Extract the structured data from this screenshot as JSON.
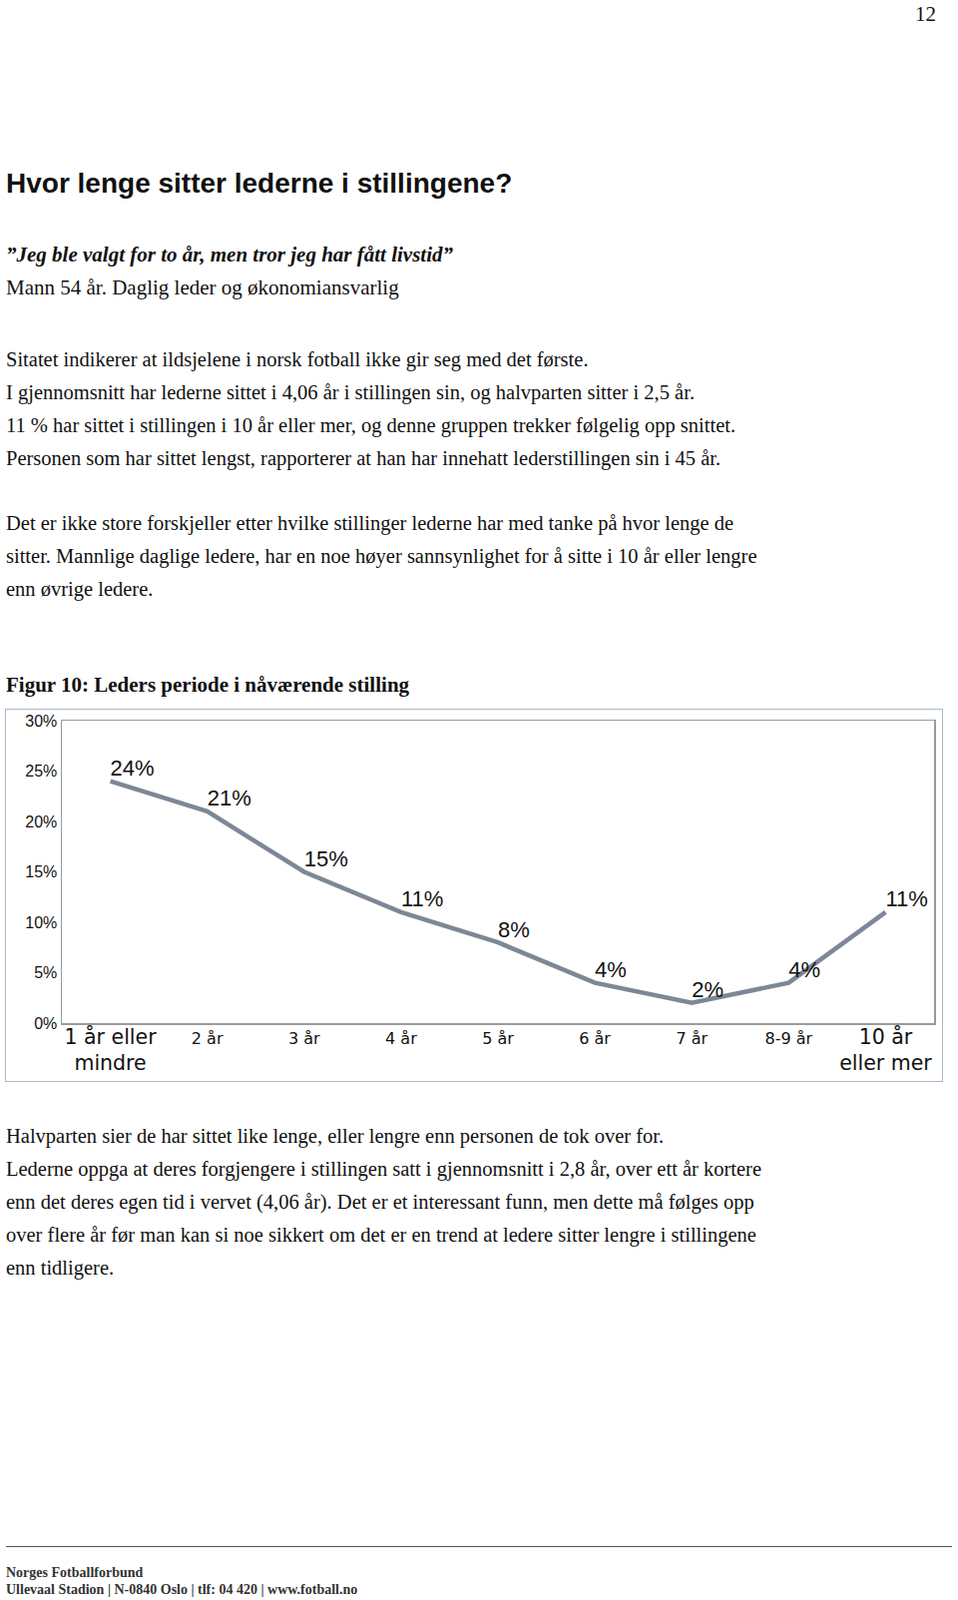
{
  "page_number": "12",
  "heading": "Hvor lenge sitter lederne i stillingene?",
  "quote": "”Jeg ble valgt for to år, men tror jeg har fått livstid”",
  "quote_source": "Mann 54 år. Daglig leder og økonomiansvarlig",
  "paragraphs_before": [
    [
      "Sitatet indikerer at ildsjelene i norsk fotball ikke gir seg med det første.",
      "I gjennomsnitt har lederne sittet i 4,06 år i stillingen sin, og halvparten sitter i 2,5 år.",
      "11 % har sittet i stillingen i 10 år eller mer, og denne gruppen trekker følgelig opp snittet.",
      "Personen som har sittet lengst, rapporterer at han har innehatt lederstillingen sin i 45 år."
    ],
    [
      "Det er ikke store forskjeller etter hvilke stillinger lederne har med tanke på hvor lenge de",
      "sitter. Mannlige daglige ledere, har en noe høyer sannsynlighet for å sitte i 10 år eller lengre",
      "enn øvrige ledere."
    ]
  ],
  "figure_caption": "Figur 10: Leders periode i nåværende stilling",
  "chart_data": {
    "type": "line",
    "categories": [
      "1 år eller mindre",
      "2 år",
      "3 år",
      "4 år",
      "5 år",
      "6 år",
      "7 år",
      "8-9 år",
      "10 år eller mer"
    ],
    "values": [
      24,
      21,
      15,
      11,
      8,
      4,
      2,
      4,
      11
    ],
    "value_labels": [
      "24%",
      "21%",
      "15%",
      "11%",
      "8%",
      "4%",
      "2%",
      "4%",
      "11%"
    ],
    "data_labels": true,
    "color": "#7d8796",
    "line_style": "solid",
    "ylim": [
      0,
      30
    ],
    "yticks": [
      {
        "value": 0,
        "label": "0%"
      },
      {
        "value": 5,
        "label": "5%"
      },
      {
        "value": 10,
        "label": "10%"
      },
      {
        "value": 15,
        "label": "15%"
      },
      {
        "value": 20,
        "label": "20%"
      },
      {
        "value": 25,
        "label": "25%"
      },
      {
        "value": 30,
        "label": "30%"
      }
    ],
    "grid": false
  },
  "paragraphs_after": [
    [
      "Halvparten sier de har sittet like lenge, eller lengre enn personen de tok over for."
    ],
    [
      "Lederne oppga at deres forgjengere i stillingen satt i gjennomsnitt i 2,8 år, over ett år kortere",
      "enn det deres egen tid i vervet (4,06 år). Det er et interessant funn, men dette må følges opp",
      "over flere år før man kan si noe sikkert om det er en trend at ledere sitter lengre i stillingene",
      "enn tidligere."
    ]
  ],
  "footer": [
    "Norges Fotballforbund",
    "Ullevaal Stadion | N-0840 Oslo | tlf: 04 420 | www.fotball.no"
  ]
}
